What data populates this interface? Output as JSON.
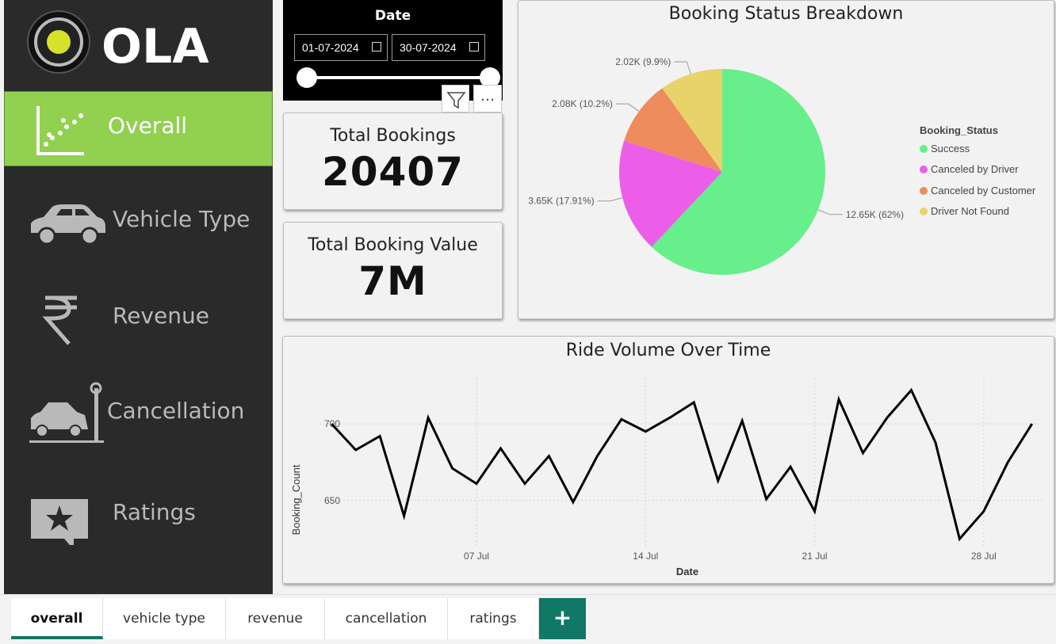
{
  "brand": {
    "name": "OLA"
  },
  "nav": {
    "items": [
      {
        "label": "Overall",
        "icon": "scatter-chart-icon"
      },
      {
        "label": "Vehicle Type",
        "icon": "car-icon"
      },
      {
        "label": "Revenue",
        "icon": "rupee-icon"
      },
      {
        "label": "Cancellation",
        "icon": "car-crash-icon"
      },
      {
        "label": "Ratings",
        "icon": "star-rating-icon"
      }
    ]
  },
  "date_slicer": {
    "title": "Date",
    "start": "01-07-2024",
    "end": "30-07-2024",
    "more_label": "…"
  },
  "kpis": {
    "total_bookings": {
      "label": "Total Bookings",
      "value": "20407"
    },
    "total_booking_value": {
      "label": "Total Booking Value",
      "value": "7M"
    }
  },
  "pie": {
    "title": "Booking Status Breakdown",
    "legend_title": "Booking_Status",
    "items": [
      {
        "name": "Success",
        "value": 12.65,
        "label": "12.65K (62%)",
        "color": "#66ef8a"
      },
      {
        "name": "Canceled by Driver",
        "value": 3.65,
        "label": "3.65K (17.91%)",
        "color": "#ec5ee8"
      },
      {
        "name": "Canceled by Customer",
        "value": 2.08,
        "label": "2.08K (10.2%)",
        "color": "#ee8c5e"
      },
      {
        "name": "Driver Not Found",
        "value": 2.02,
        "label": "2.02K (9.9%)",
        "color": "#e8d36a"
      }
    ]
  },
  "line": {
    "title": "Ride Volume Over Time",
    "ylabel": "Booking_Count",
    "xlabel": "Date",
    "yticks": [
      "650",
      "700"
    ],
    "xticks": [
      "07 Jul",
      "14 Jul",
      "21 Jul",
      "28 Jul"
    ]
  },
  "chart_data": {
    "type": "line",
    "title": "Ride Volume Over Time",
    "xlabel": "Date",
    "ylabel": "Booking_Count",
    "x": [
      1,
      2,
      3,
      4,
      5,
      6,
      7,
      8,
      9,
      10,
      11,
      12,
      13,
      14,
      15,
      16,
      17,
      18,
      19,
      20,
      21,
      22,
      23,
      24,
      25,
      26,
      27,
      28,
      29,
      30
    ],
    "values": [
      700,
      683,
      692,
      640,
      704,
      671,
      661,
      684,
      661,
      679,
      649,
      679,
      703,
      695,
      704,
      714,
      663,
      702,
      651,
      672,
      643,
      716,
      681,
      704,
      722,
      688,
      625,
      643,
      675,
      700
    ],
    "ylim": [
      620,
      730
    ],
    "xticks": [
      {
        "x": 7,
        "label": "07 Jul"
      },
      {
        "x": 14,
        "label": "14 Jul"
      },
      {
        "x": 21,
        "label": "21 Jul"
      },
      {
        "x": 28,
        "label": "28 Jul"
      }
    ],
    "yticks": [
      650,
      700
    ],
    "grid": true
  },
  "tabs": [
    {
      "label": "overall",
      "active": true
    },
    {
      "label": "vehicle type",
      "active": false
    },
    {
      "label": "revenue",
      "active": false
    },
    {
      "label": "cancellation",
      "active": false
    },
    {
      "label": "ratings",
      "active": false
    }
  ],
  "tab_add_label": "+"
}
